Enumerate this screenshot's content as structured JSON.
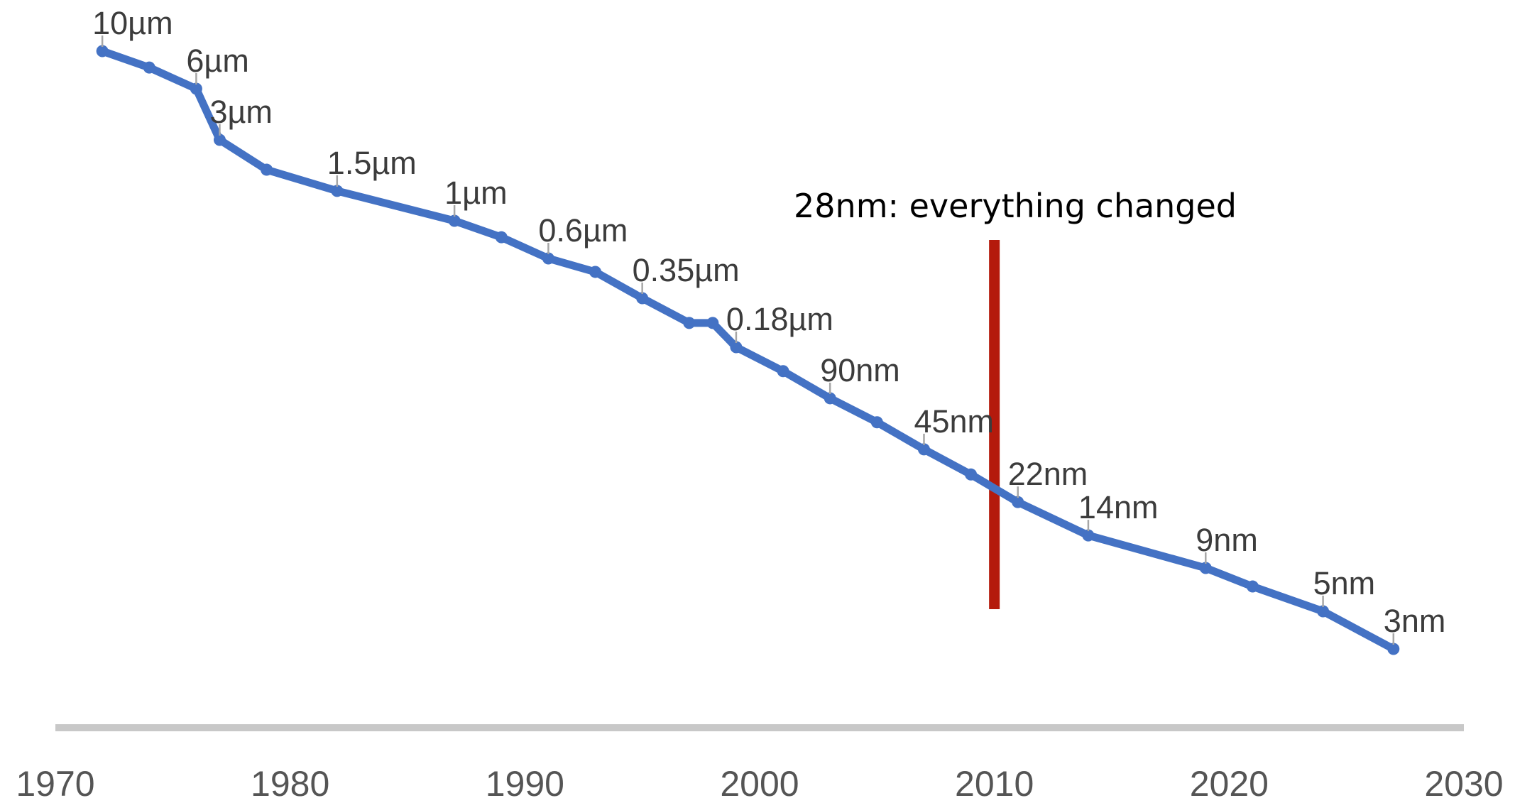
{
  "chart_data": {
    "type": "line",
    "title": "",
    "xlabel": "",
    "ylabel": "",
    "xlim": [
      1970,
      2030
    ],
    "x_ticks": [
      "1970",
      "1980",
      "1990",
      "2000",
      "2010",
      "2020",
      "2030"
    ],
    "y_scale": "log",
    "y_axis_visible": false,
    "grid": false,
    "legend": "none",
    "series": [
      {
        "points": [
          {
            "x": 1972,
            "y": 10000,
            "label": "10µm"
          },
          {
            "x": 1974,
            "y": 8000,
            "label": ""
          },
          {
            "x": 1976,
            "y": 6000,
            "label": "6µm"
          },
          {
            "x": 1977,
            "y": 3000,
            "label": "3µm"
          },
          {
            "x": 1979,
            "y": 2000,
            "label": ""
          },
          {
            "x": 1982,
            "y": 1500,
            "label": "1.5µm"
          },
          {
            "x": 1987,
            "y": 1000,
            "label": "1µm"
          },
          {
            "x": 1989,
            "y": 800,
            "label": ""
          },
          {
            "x": 1991,
            "y": 600,
            "label": "0.6µm"
          },
          {
            "x": 1993,
            "y": 500,
            "label": ""
          },
          {
            "x": 1995,
            "y": 350,
            "label": "0.35µm"
          },
          {
            "x": 1997,
            "y": 250,
            "label": ""
          },
          {
            "x": 1998,
            "y": 250,
            "label": ""
          },
          {
            "x": 1999,
            "y": 180,
            "label": "0.18µm"
          },
          {
            "x": 2001,
            "y": 130,
            "label": ""
          },
          {
            "x": 2003,
            "y": 90,
            "label": "90nm"
          },
          {
            "x": 2005,
            "y": 65,
            "label": ""
          },
          {
            "x": 2007,
            "y": 45,
            "label": "45nm"
          },
          {
            "x": 2009,
            "y": 32,
            "label": ""
          },
          {
            "x": 2011,
            "y": 22,
            "label": "22nm"
          },
          {
            "x": 2014,
            "y": 14,
            "label": "14nm"
          },
          {
            "x": 2019,
            "y": 9,
            "label": "9nm"
          },
          {
            "x": 2021,
            "y": 7,
            "label": ""
          },
          {
            "x": 2024,
            "y": 5,
            "label": "5nm"
          },
          {
            "x": 2027,
            "y": 3,
            "label": "3nm"
          }
        ]
      }
    ],
    "annotations": [
      {
        "x": 2010,
        "text": "28nm: everything changed"
      }
    ],
    "colors": {
      "line": "#4472C4",
      "annotation_line": "#B41A0C",
      "axis": "#C8C8C8",
      "tick_label": "#555555",
      "data_label": "#3C3C3C",
      "annotation_text": "#000000"
    }
  }
}
